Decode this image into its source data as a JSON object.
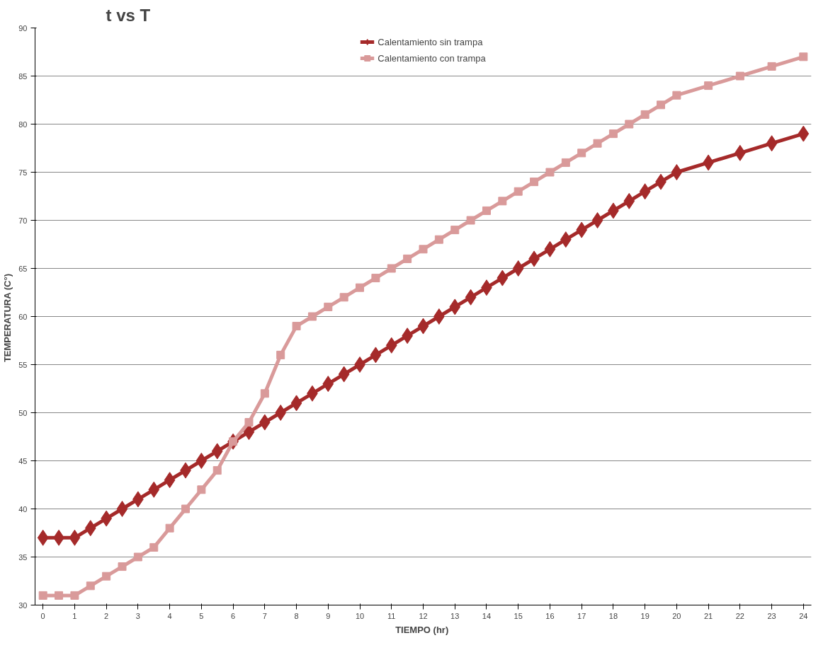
{
  "chart_data": {
    "type": "line",
    "title": "t   vs   T",
    "xlabel": "TIEMPO  (hr)",
    "ylabel": "TEMPERATURA  (C°)",
    "x": [
      0,
      0.5,
      1,
      1.5,
      2,
      2.5,
      3,
      3.5,
      4,
      4.5,
      5,
      5.5,
      6,
      6.5,
      7,
      7.5,
      8,
      8.5,
      9,
      9.5,
      10,
      10.5,
      11,
      11.5,
      12,
      12.5,
      13,
      13.5,
      14,
      14.5,
      15,
      15.5,
      16,
      16.5,
      17,
      17.5,
      18,
      18.5,
      19,
      19.5,
      20,
      21,
      22,
      23,
      24
    ],
    "series": [
      {
        "name": "Calentamiento sin trampa",
        "color": "#a52a2a",
        "marker": "diamond",
        "values": [
          37,
          37,
          37,
          38,
          39,
          40,
          41,
          42,
          43,
          44,
          45,
          46,
          47,
          48,
          49,
          50,
          51,
          52,
          53,
          54,
          55,
          56,
          57,
          58,
          59,
          60,
          61,
          62,
          63,
          64,
          65,
          66,
          67,
          68,
          69,
          70,
          71,
          72,
          73,
          74,
          75,
          76,
          77,
          78,
          79
        ]
      },
      {
        "name": "Calentamiento con trampa",
        "color": "#d99a9a",
        "marker": "square",
        "values": [
          31,
          31,
          31,
          32,
          33,
          34,
          35,
          36,
          38,
          40,
          42,
          44,
          47,
          49,
          52,
          56,
          59,
          60,
          61,
          62,
          63,
          64,
          65,
          66,
          67,
          68,
          69,
          70,
          71,
          72,
          73,
          74,
          75,
          76,
          77,
          78,
          79,
          80,
          81,
          82,
          83,
          84,
          85,
          86,
          87
        ]
      }
    ],
    "xlim": [
      -0.25,
      24.25
    ],
    "xticks": [
      0,
      1,
      2,
      3,
      4,
      5,
      6,
      7,
      8,
      9,
      10,
      11,
      12,
      13,
      14,
      15,
      16,
      17,
      18,
      19,
      20,
      21,
      22,
      23,
      24
    ],
    "ylim": [
      30,
      90
    ],
    "yticks": [
      30,
      35,
      40,
      45,
      50,
      55,
      60,
      65,
      70,
      75,
      80,
      85,
      90
    ],
    "grid": "y",
    "legend": "top",
    "line_style": "solid"
  }
}
